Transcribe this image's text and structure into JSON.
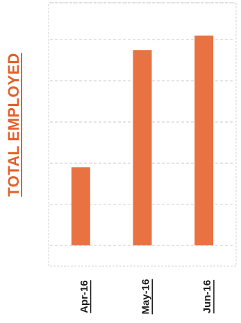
{
  "chart_data": {
    "type": "bar",
    "categories": [
      "Apr-16",
      "May-16",
      "Jun-16"
    ],
    "values": [
      38,
      95,
      102
    ],
    "ylabel": "TOTAL EMPLOYED",
    "xlabel": "",
    "ylim": [
      0,
      118
    ],
    "grid": true,
    "legend": "none",
    "bar_color": "#e97242",
    "ylabel_color": "#e4602a",
    "grid_color": "#d4d4d4"
  }
}
